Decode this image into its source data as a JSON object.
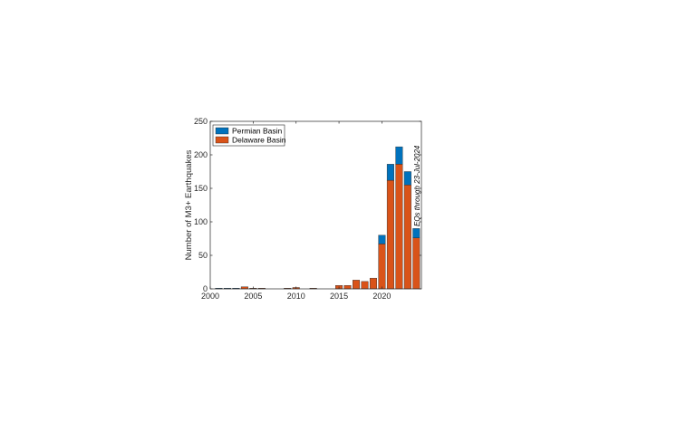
{
  "chart_data": {
    "type": "bar",
    "stacked": true,
    "x": [
      2001,
      2002,
      2003,
      2004,
      2005,
      2006,
      2007,
      2008,
      2009,
      2010,
      2011,
      2012,
      2013,
      2014,
      2015,
      2016,
      2017,
      2018,
      2019,
      2020,
      2021,
      2022,
      2023,
      2024
    ],
    "series": [
      {
        "name": "Delaware Basin",
        "color": "#D95319",
        "values": [
          0,
          0,
          0,
          3,
          1,
          1,
          0,
          0,
          1,
          2,
          0,
          1,
          0,
          0,
          5,
          5,
          13,
          11,
          16,
          67,
          162,
          186,
          155,
          76
        ]
      },
      {
        "name": "Permian Basin",
        "color": "#0072BD",
        "values": [
          1,
          1,
          1,
          0,
          0,
          0,
          0,
          0,
          0,
          0,
          0,
          0,
          0,
          0,
          0,
          0,
          0,
          0,
          0,
          13,
          24,
          26,
          20,
          14
        ]
      }
    ],
    "xlim": [
      2000,
      2024.6
    ],
    "ylim": [
      0,
      250
    ],
    "xticks": [
      2000,
      2005,
      2010,
      2015,
      2020
    ],
    "yticks": [
      0,
      50,
      100,
      150,
      200,
      250
    ],
    "xlabel": "",
    "ylabel": "Number of M3+ Earthquakes",
    "legend": {
      "placement": "top-left",
      "entries": [
        {
          "label": "Permian Basin",
          "color": "#0072BD"
        },
        {
          "label": "Delaware Basin",
          "color": "#D95319"
        }
      ]
    },
    "annotation": "EQs through 23-Jul-2024",
    "grid": false
  }
}
